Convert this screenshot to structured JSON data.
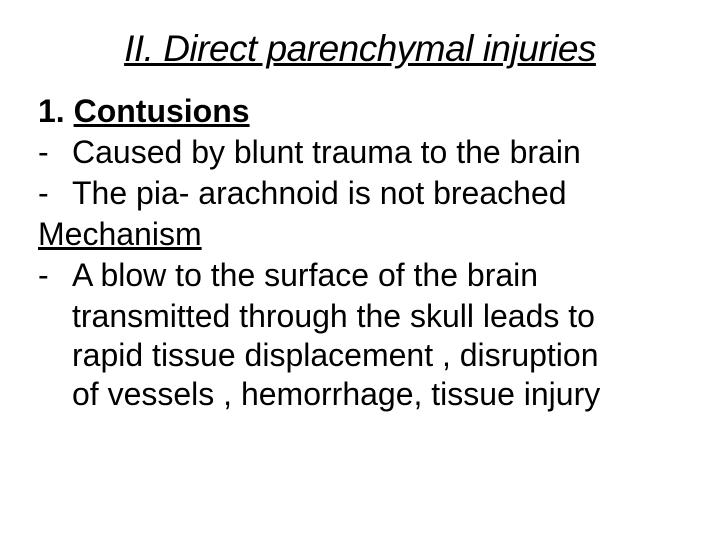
{
  "slide": {
    "title": "II. Direct parenchymal injuries",
    "title_fontsize": 37,
    "body_fontsize": 32,
    "heading_prefix": "1. ",
    "heading": "Contusions",
    "bullets_a": [
      "Caused by blunt trauma to the brain",
      "The pia- arachnoid is not breached"
    ],
    "subheading": "Mechanism",
    "bullet_b_first": " A blow to the surface of the brain",
    "bullet_b_cont": [
      "transmitted through the skull leads to",
      "rapid tissue displacement , disruption",
      "of vessels , hemorrhage, tissue injury"
    ],
    "colors": {
      "background": "#ffffff",
      "text": "#000000"
    }
  }
}
